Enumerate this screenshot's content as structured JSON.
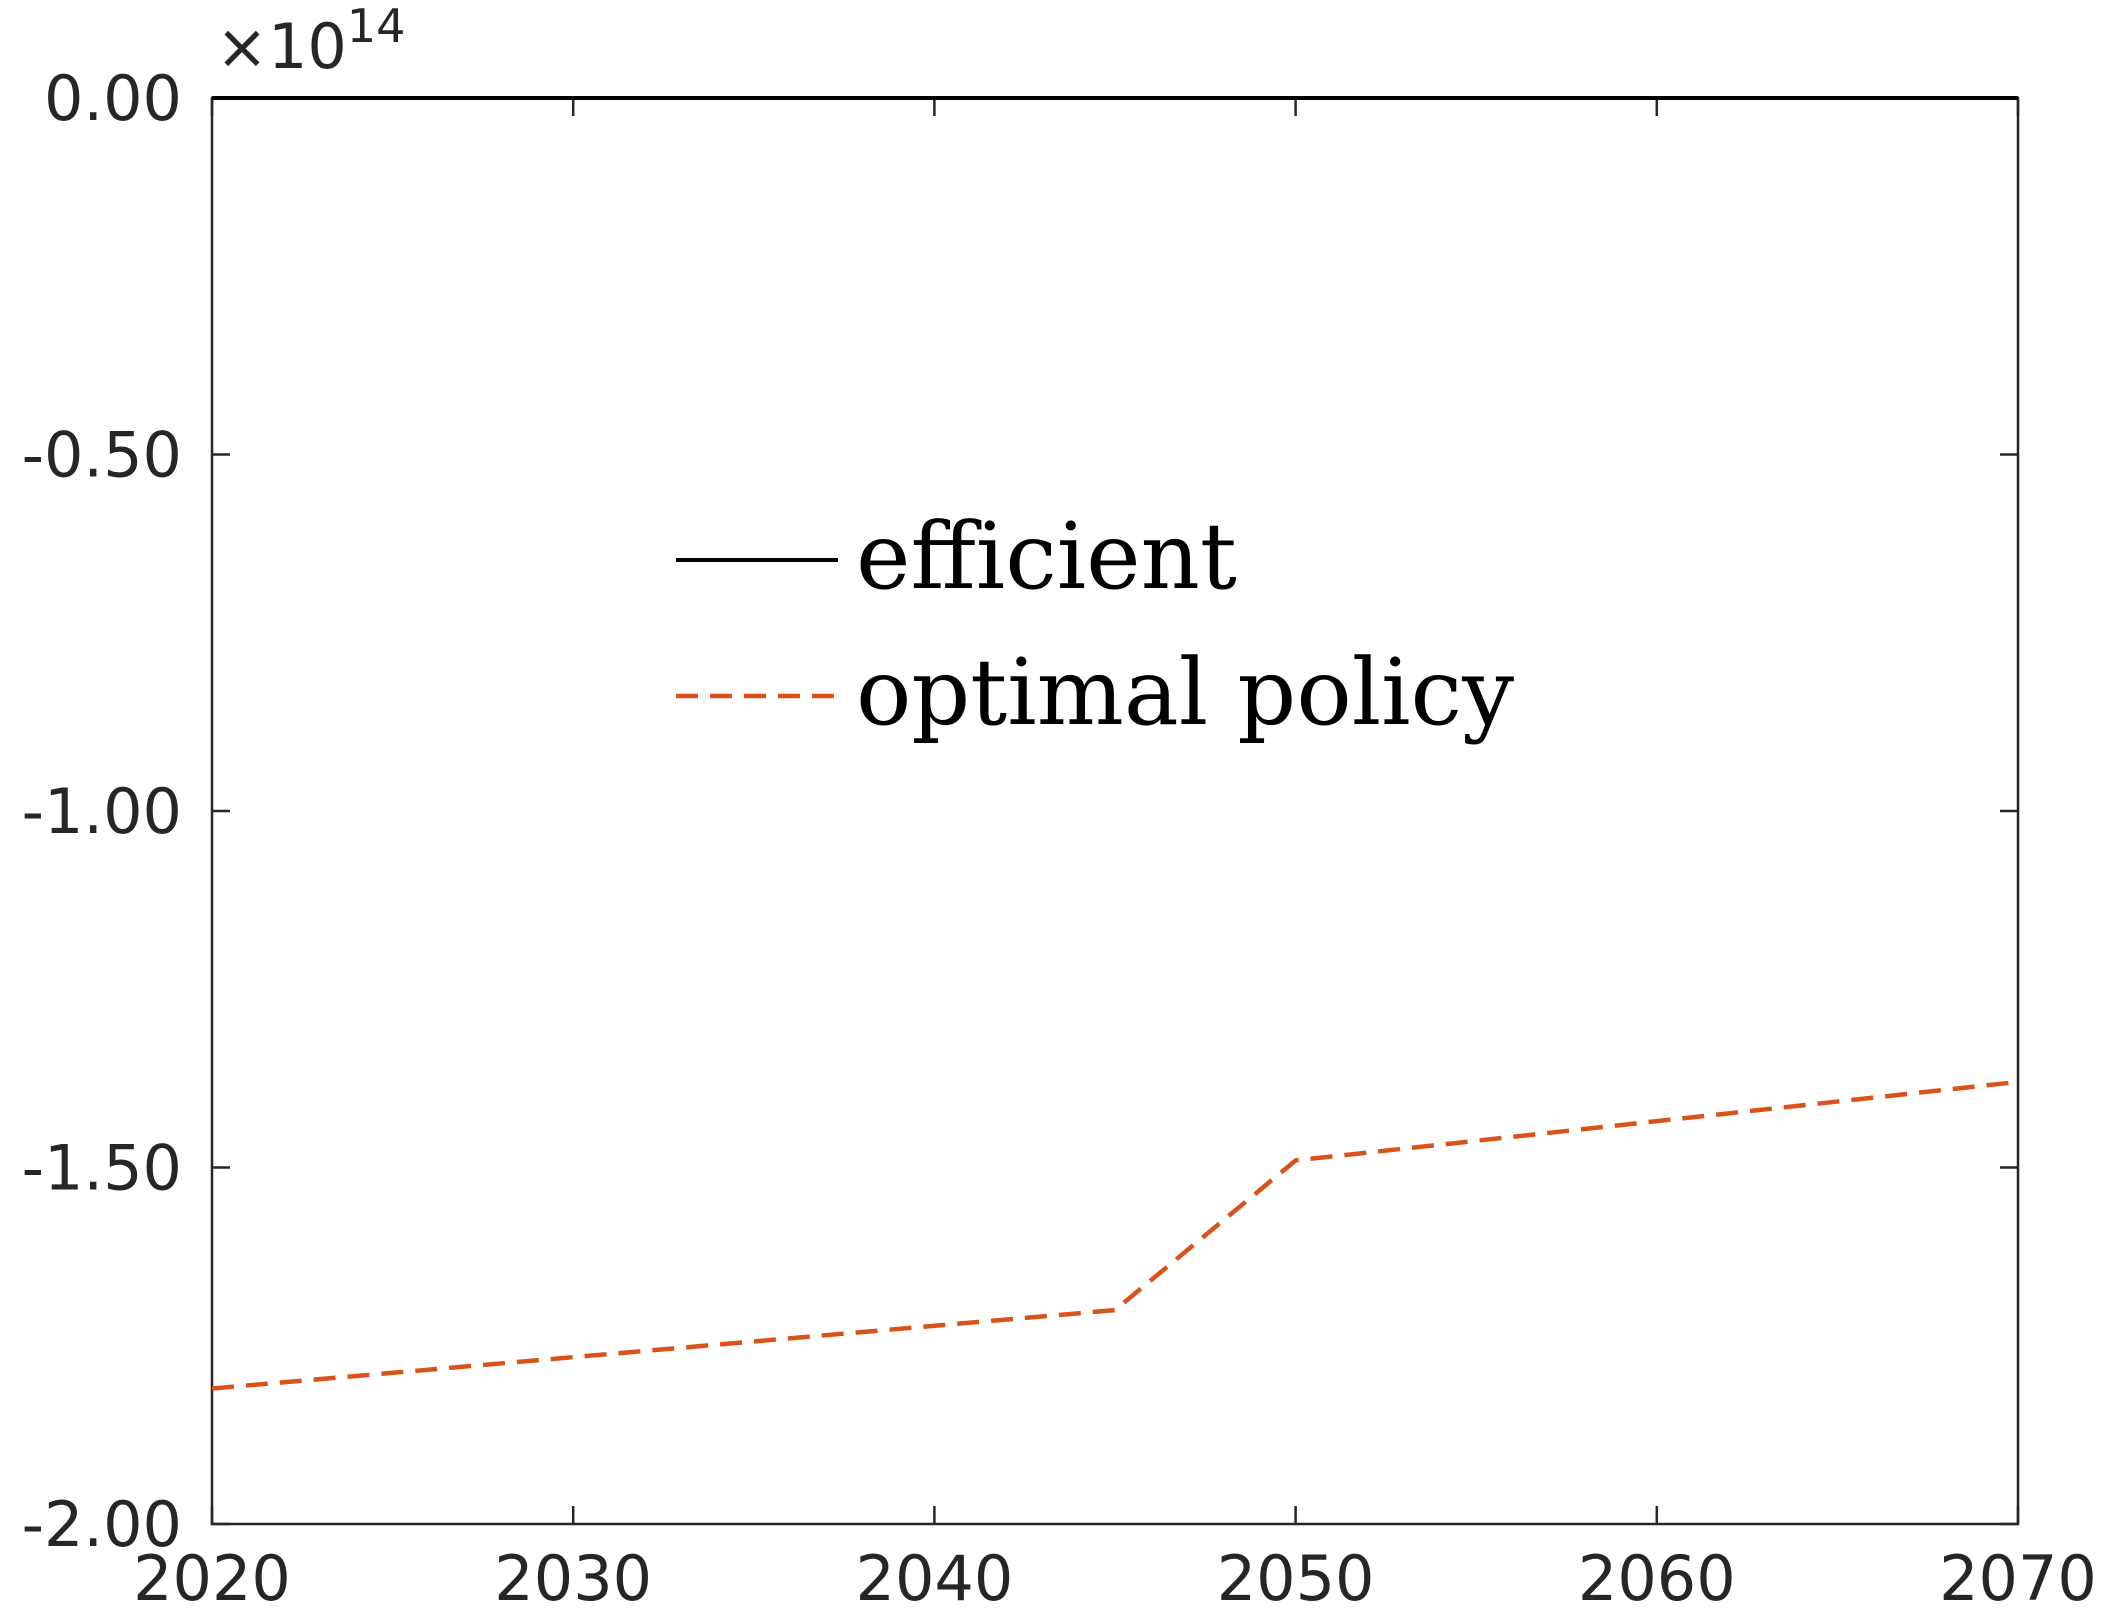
{
  "chart_data": {
    "type": "line",
    "title": "",
    "xlabel": "",
    "ylabel": "",
    "xlim": [
      2020,
      2070
    ],
    "ylim": [
      -200000000000000.0,
      0
    ],
    "x_ticks": [
      2020,
      2030,
      2040,
      2050,
      2060,
      2070
    ],
    "x_tick_labels": [
      "2020",
      "2030",
      "2040",
      "2050",
      "2060",
      "2070"
    ],
    "y_ticks": [
      0,
      -0.5,
      -1.0,
      -1.5,
      -2.0
    ],
    "y_tick_labels": [
      "0.00",
      "-0.50",
      "-1.00",
      "-1.50",
      "-2.00"
    ],
    "y_exponent_label": "×10",
    "y_exponent_power": "14",
    "y_scale_factor": 100000000000000.0,
    "grid": false,
    "legend_position": "center",
    "series": [
      {
        "name": "efficient",
        "style": "solid",
        "color": "#000000",
        "x": [
          2020,
          2070
        ],
        "y": [
          0,
          0
        ]
      },
      {
        "name": "optimal policy",
        "style": "dashed",
        "color": "#D95319",
        "x": [
          2020,
          2045,
          2050,
          2070
        ],
        "y": [
          -181000000000000.0,
          -170000000000000.0,
          -149000000000000.0,
          -138000000000000.0
        ]
      }
    ]
  }
}
